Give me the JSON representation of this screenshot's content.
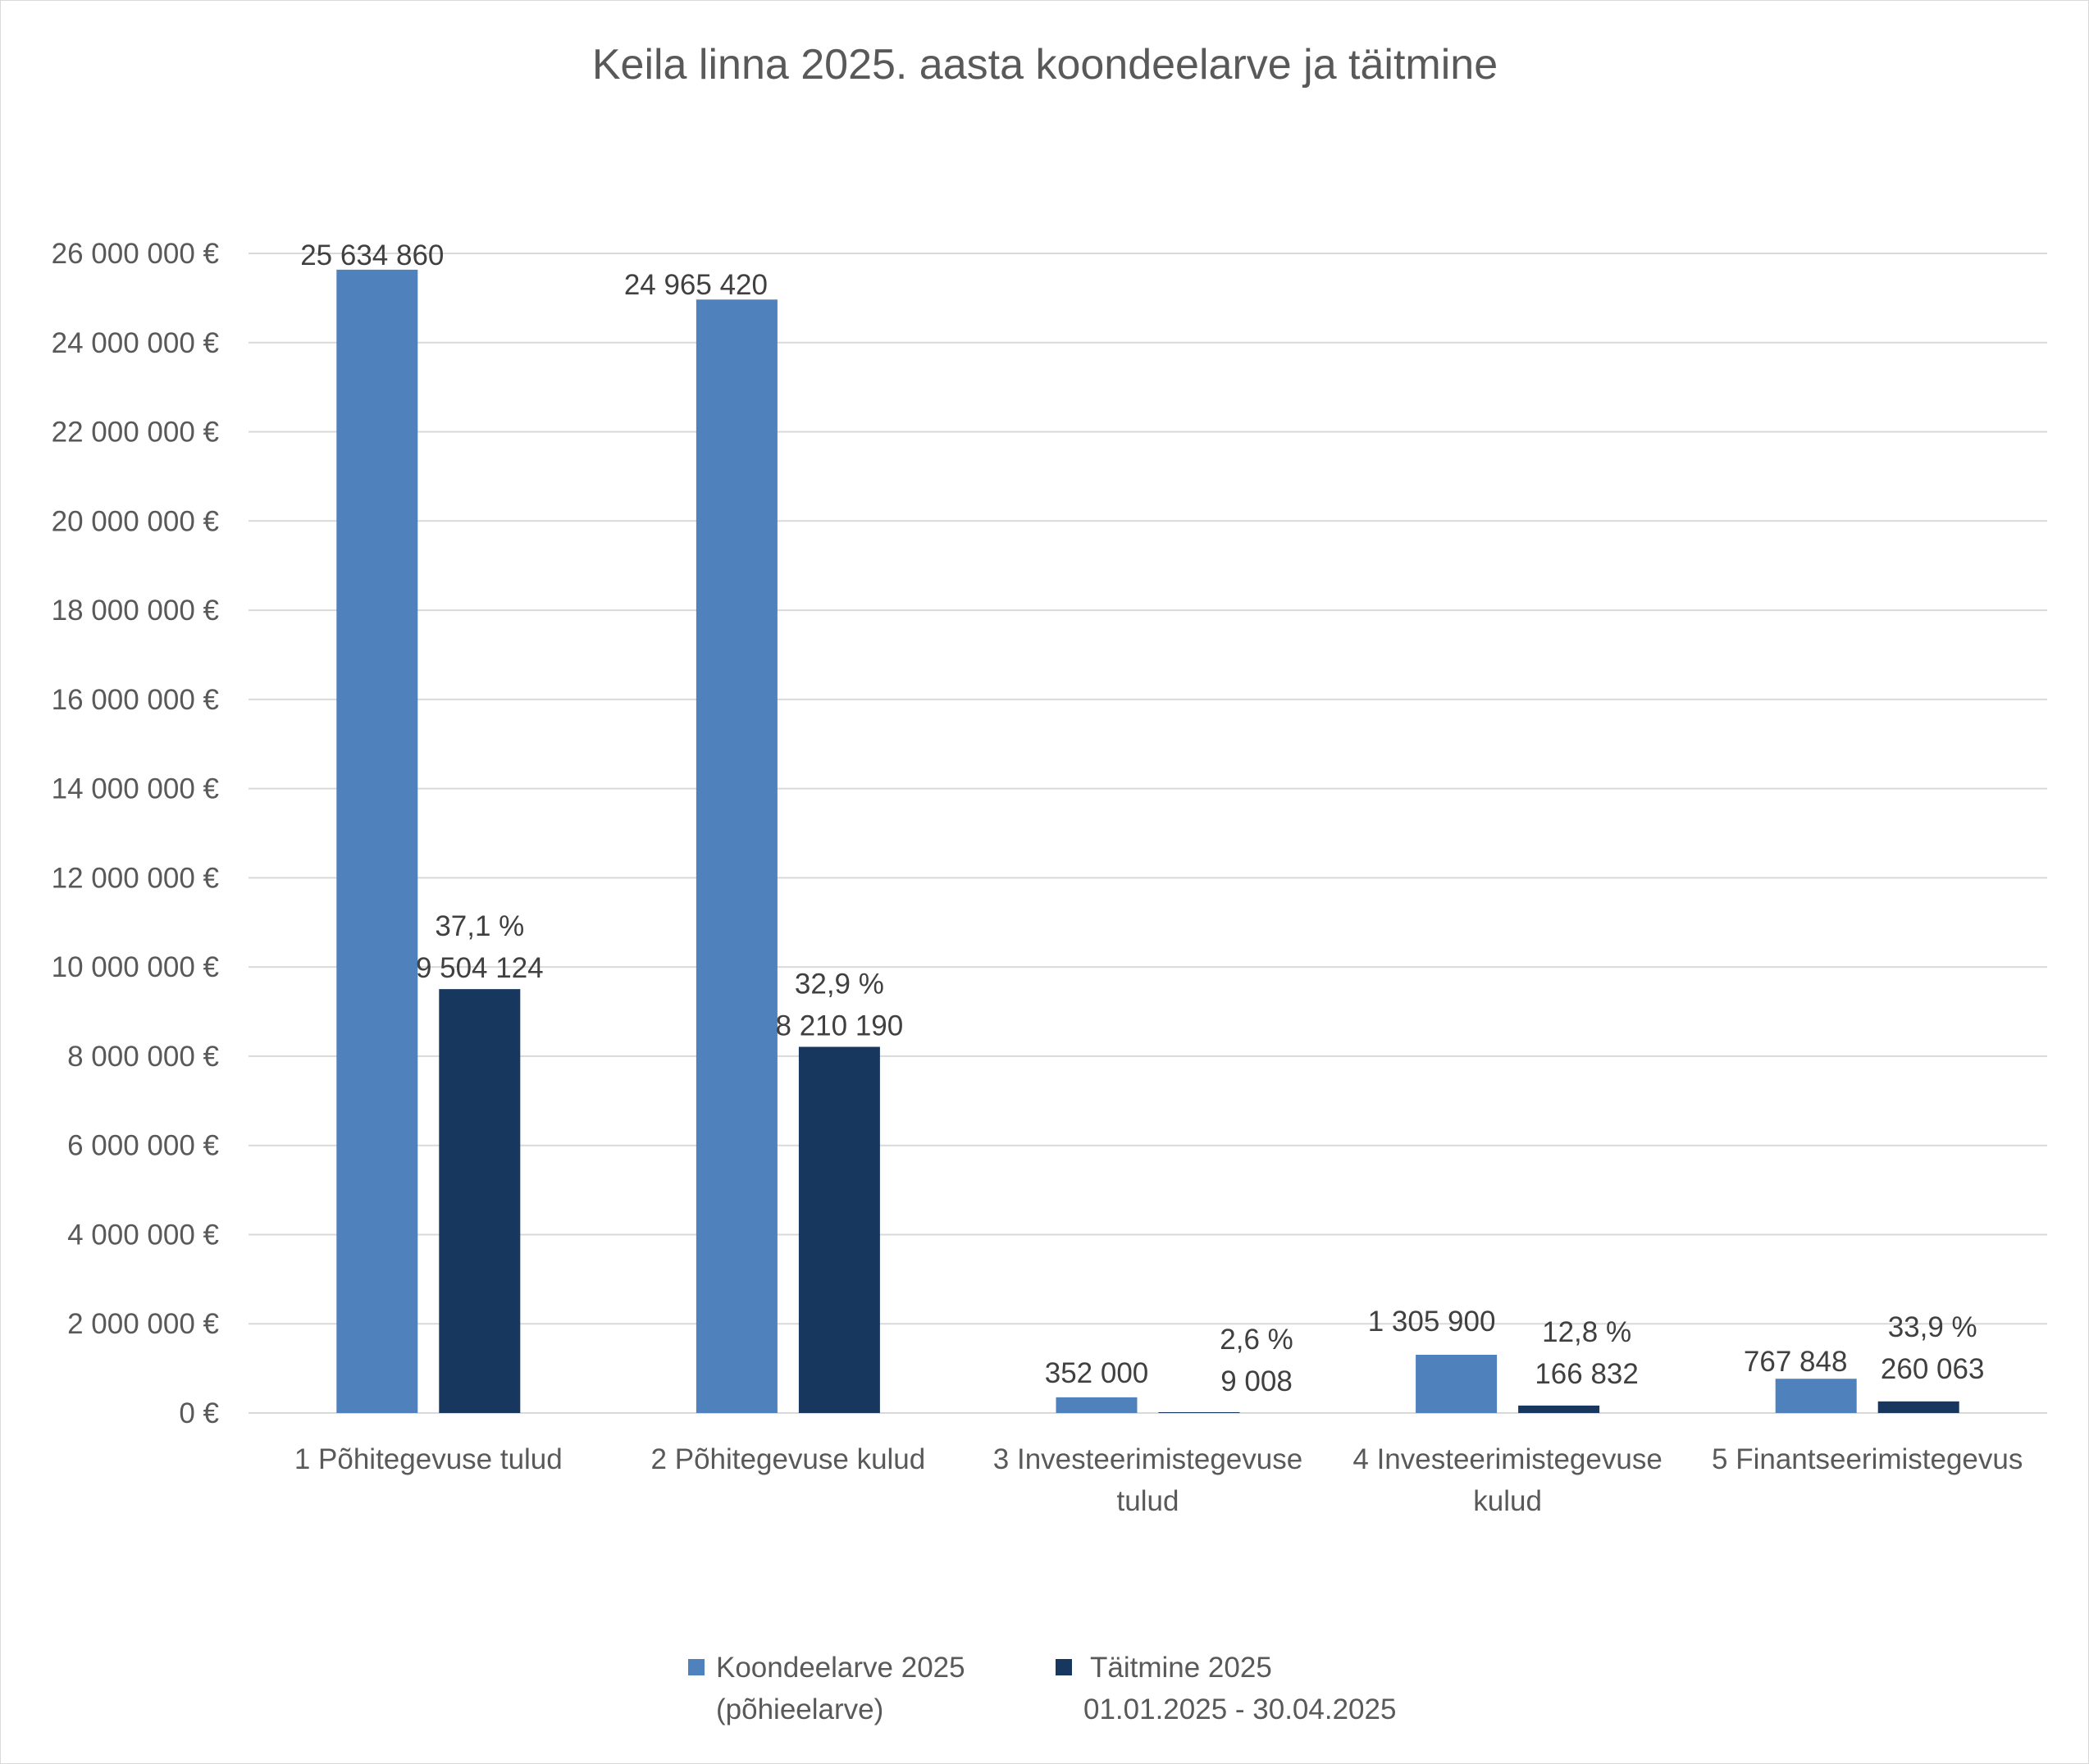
{
  "chart_data": {
    "type": "bar",
    "title": "Keila linna 2025. aasta koondeelarve ja täitmine",
    "xlabel": "",
    "ylabel": "",
    "ylim": [
      0,
      26000000
    ],
    "ytick_step": 2000000,
    "y_tick_labels": [
      "0 €",
      "2 000 000 €",
      "4 000 000 €",
      "6 000 000 €",
      "8 000 000 €",
      "10 000 000 €",
      "12 000 000 €",
      "14 000 000 €",
      "16 000 000 €",
      "18 000 000 €",
      "20 000 000 €",
      "22 000 000 €",
      "24 000 000 €",
      "26 000 000 €"
    ],
    "grid": true,
    "legend_position": "bottom",
    "categories": [
      [
        "1 Põhitegevuse tulud"
      ],
      [
        "2 Põhitegevuse kulud"
      ],
      [
        "3 Investeerimistegevuse",
        "tulud"
      ],
      [
        "4 Investeerimistegevuse",
        "kulud"
      ],
      [
        "5 Finantseerimistegevus"
      ]
    ],
    "series": [
      {
        "name": [
          "Koondeelarve 2025",
          "(põhieelarve)"
        ],
        "color": "#4f81bd",
        "values": [
          25634860,
          24965420,
          352000,
          1305900,
          767848
        ],
        "labels": [
          [
            "25 634 860"
          ],
          [
            "24 965 420"
          ],
          [
            "352 000"
          ],
          [
            "1 305 900"
          ],
          [
            "767 848"
          ]
        ]
      },
      {
        "name": [
          "Täitmine 2025",
          "01.01.2025 - 30.04.2025"
        ],
        "color": "#17375e",
        "values": [
          9504124,
          8210190,
          9008,
          166832,
          260063
        ],
        "labels": [
          [
            "37,1 %",
            "9 504 124"
          ],
          [
            "32,9 %",
            "8 210 190"
          ],
          [
            "2,6 %",
            "9 008"
          ],
          [
            "12,8 %",
            "166 832"
          ],
          [
            "33,9 %",
            "260 063"
          ]
        ]
      }
    ]
  }
}
